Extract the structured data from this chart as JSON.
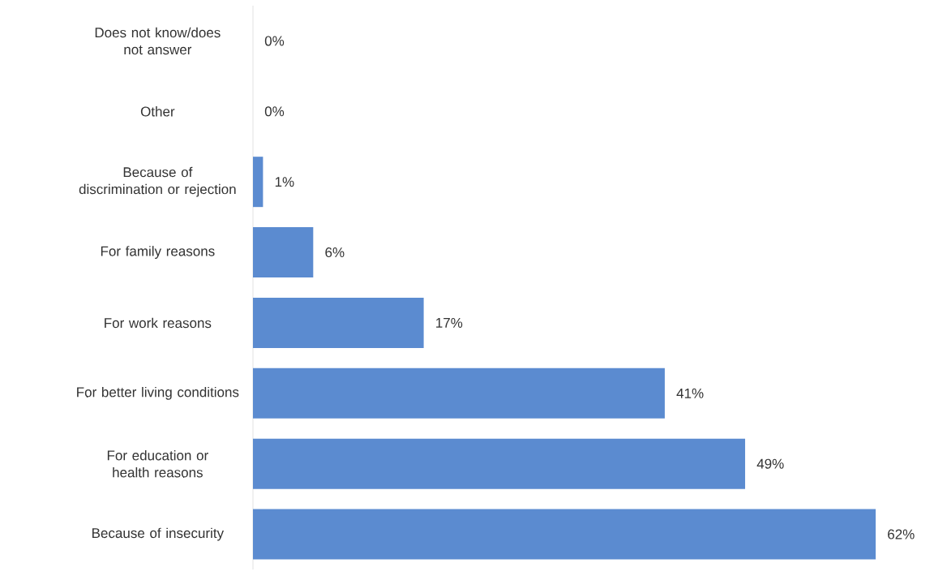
{
  "chart_data": {
    "type": "bar",
    "orientation": "horizontal",
    "categories": [
      "Does not know/does not answer",
      "Other",
      "Because of discrimination or rejection",
      "For family reasons",
      "For work reasons",
      "For better living conditions",
      "For education or health reasons",
      "Because of insecurity"
    ],
    "values": [
      0,
      0,
      1,
      6,
      17,
      41,
      49,
      62
    ],
    "value_labels": [
      "0%",
      "0%",
      "1%",
      "6%",
      "17%",
      "41%",
      "49%",
      "62%"
    ],
    "color": "#5b8bd0"
  }
}
